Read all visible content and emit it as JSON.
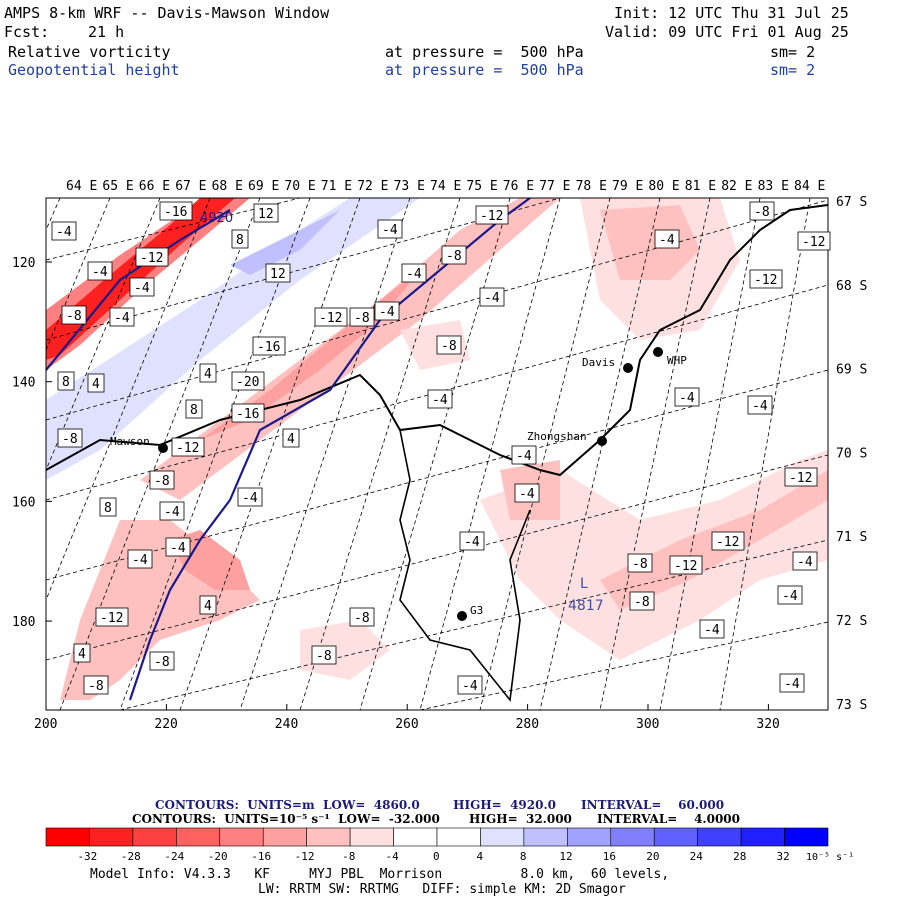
{
  "header": {
    "title": "AMPS 8-km WRF -- Davis-Mawson Window",
    "init": "Init: 12 UTC Thu 31 Jul 25",
    "fcst_label": "Fcst:",
    "fcst_hours": "21 h",
    "valid": "Valid: 09 UTC Fri 01 Aug 25",
    "field1": {
      "name": "Relative vorticity",
      "level": "at pressure =  500 hPa",
      "sm": "sm= 2"
    },
    "field2": {
      "name": "Geopotential height",
      "level": "at pressure =  500 hPa",
      "sm": "sm= 2"
    }
  },
  "map": {
    "lon_labels": [
      "64 E",
      "65 E",
      "66 E",
      "67 E",
      "68 E",
      "69 E",
      "70 E",
      "71 E",
      "72 E",
      "73 E",
      "74 E",
      "75 E",
      "76 E",
      "77 E",
      "78 E",
      "79 E",
      "80 E",
      "81 E",
      "82 E",
      "83 E",
      "84 E"
    ],
    "lat_labels": [
      "67 S",
      "68 S",
      "69 S",
      "70 S",
      "71 S",
      "72 S",
      "73 S"
    ],
    "x_ticks": [
      "200",
      "220",
      "240",
      "260",
      "280",
      "300",
      "320"
    ],
    "y_ticks": [
      "120",
      "140",
      "160",
      "180"
    ],
    "stations": [
      {
        "name": "Mawson"
      },
      {
        "name": "Davis"
      },
      {
        "name": "WHP"
      },
      {
        "name": "Zhongshan"
      },
      {
        "name": "G3"
      }
    ],
    "low_center": {
      "letter": "L",
      "value": "4817"
    },
    "height_label": "4920",
    "contour_labels": [
      "-16",
      "12",
      "8",
      "-4",
      "-4",
      "-12",
      "-4",
      "-4",
      "-8",
      "-4",
      "12",
      "-12",
      "-4",
      "-12",
      "-12",
      "-8",
      "-4",
      "-8",
      "-4",
      "-16",
      "-8",
      "4",
      "4",
      "8",
      "-20",
      "-4",
      "-4",
      "-16",
      "-4",
      "8",
      "-12",
      "4",
      "-4",
      "-12",
      "-8",
      "-8",
      "-4",
      "8",
      "-4",
      "-4",
      "-12",
      "-4",
      "-8",
      "-4",
      "-12",
      "-4",
      "-4",
      "-8",
      "-12",
      "-8",
      "-8",
      "-4",
      "4",
      "4",
      "-8",
      "-4",
      "-8",
      "-4",
      "-4",
      "-8",
      "-12",
      "-4"
    ],
    "colors": {
      "red_strong": "#ff0000",
      "blue_strong": "#0000ff",
      "height_contour": "#1a1a8c",
      "coast": "#000000"
    }
  },
  "footer": {
    "contours1": "CONTOURS:  UNITS=m  LOW=  4860.0        HIGH=  4920.0      INTERVAL=    60.000",
    "contours2": "CONTOURS:  UNITS=10⁻⁵ s⁻¹  LOW=  -32.000       HIGH=  32.000      INTERVAL=    4.0000",
    "colorbar_ticks": [
      "-32",
      "-28",
      "-24",
      "-20",
      "-16",
      "-12",
      "-8",
      "-4",
      "0",
      "4",
      "8",
      "12",
      "16",
      "20",
      "24",
      "28",
      "32"
    ],
    "colorbar_unit": "10⁻⁵ s⁻¹",
    "colorbar_colors": [
      "#ff0000",
      "#ff2020",
      "#ff4040",
      "#ff6060",
      "#ff8080",
      "#ffa0a0",
      "#ffc0c0",
      "#ffe0e0",
      "#ffffff",
      "#ffffff",
      "#e0e0ff",
      "#c0c0ff",
      "#a0a0ff",
      "#8080ff",
      "#6060ff",
      "#4040ff",
      "#0000ff"
    ],
    "model_info1": "Model Info: V4.3.3   KF     MYJ PBL  Morrison          8.0 km,  60 levels,",
    "model_info2": "LW: RRTM SW: RRTMG   DIFF: simple KM: 2D Smagor"
  }
}
